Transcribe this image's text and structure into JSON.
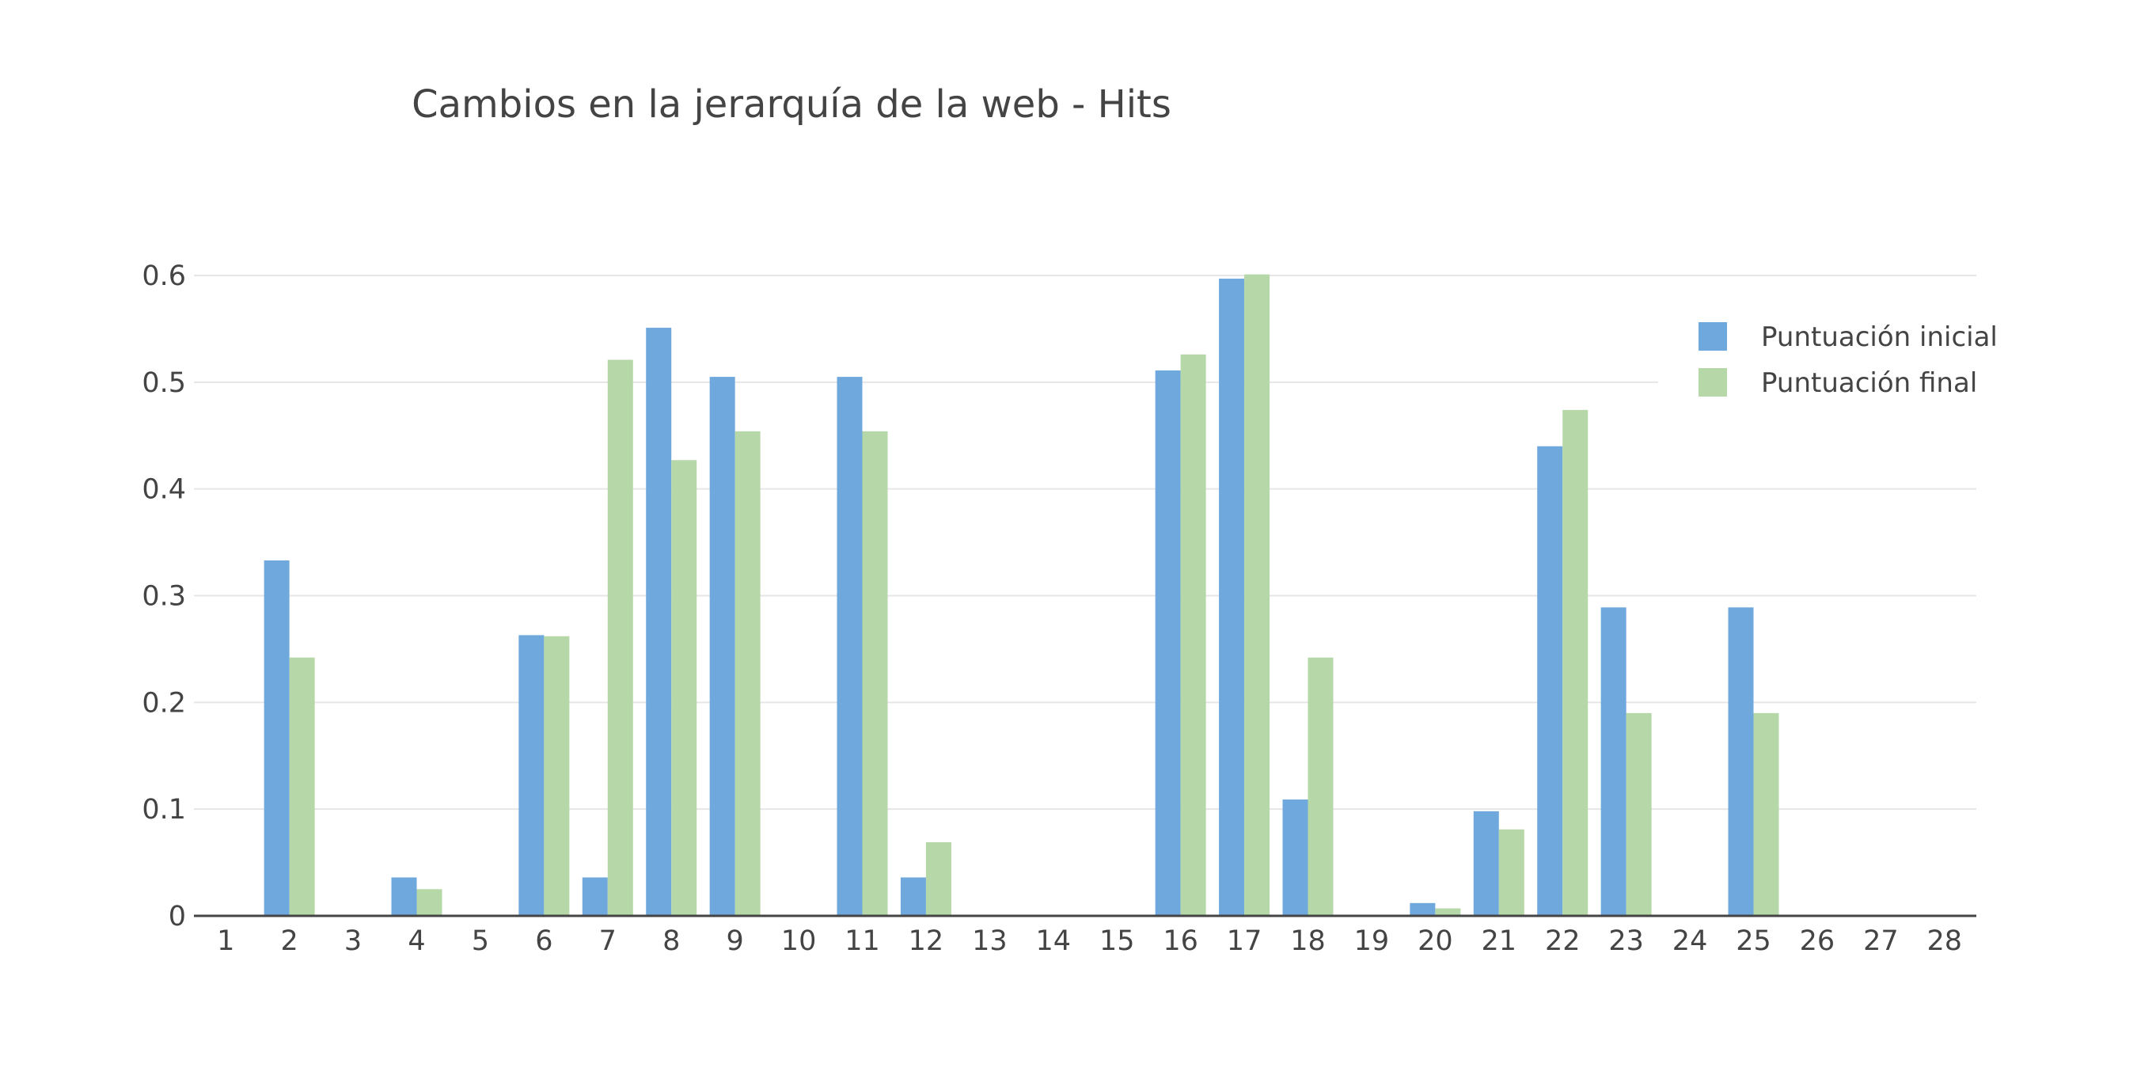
{
  "chart_data": {
    "type": "bar",
    "title": "Cambios en la jerarquía de la web - Hits",
    "xlabel": "",
    "ylabel": "",
    "ylim": [
      0,
      0.6
    ],
    "grid": true,
    "legend_position": "top-right",
    "categories": [
      "1",
      "2",
      "3",
      "4",
      "5",
      "6",
      "7",
      "8",
      "9",
      "10",
      "11",
      "12",
      "13",
      "14",
      "15",
      "16",
      "17",
      "18",
      "19",
      "20",
      "21",
      "22",
      "23",
      "24",
      "25",
      "26",
      "27",
      "28"
    ],
    "y_ticks": [
      {
        "value": 0,
        "label": "0"
      },
      {
        "value": 0.1,
        "label": "0.1"
      },
      {
        "value": 0.2,
        "label": "0.2"
      },
      {
        "value": 0.3,
        "label": "0.3"
      },
      {
        "value": 0.4,
        "label": "0.4"
      },
      {
        "value": 0.5,
        "label": "0.5"
      },
      {
        "value": 0.6,
        "label": "0.6"
      }
    ],
    "series": [
      {
        "name": "Puntuación inicial",
        "color": "#6fa8dc",
        "values": [
          0,
          0.333,
          0,
          0.036,
          0,
          0.263,
          0.036,
          0.551,
          0.505,
          0,
          0.505,
          0.036,
          0,
          0,
          0,
          0.511,
          0.597,
          0.109,
          0,
          0.012,
          0.098,
          0.44,
          0.289,
          0,
          0.289,
          0,
          0,
          0
        ]
      },
      {
        "name": "Puntuación final",
        "color": "#b6d7a8",
        "values": [
          0,
          0.242,
          0,
          0.025,
          0,
          0.262,
          0.521,
          0.427,
          0.454,
          0,
          0.454,
          0.069,
          0,
          0,
          0,
          0.526,
          0.601,
          0.242,
          0,
          0.007,
          0.081,
          0.474,
          0.19,
          0,
          0.19,
          0,
          0,
          0
        ]
      }
    ]
  }
}
